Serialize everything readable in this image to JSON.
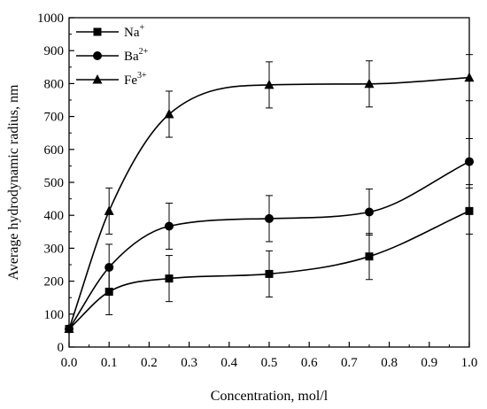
{
  "chart_data": {
    "type": "line",
    "xlabel": "Concentration, mol/l",
    "ylabel": "Average hydrodynamic radius, nm",
    "xlim": [
      0,
      1.0
    ],
    "ylim": [
      0,
      1000
    ],
    "xticks": [
      "0.0",
      "0.1",
      "0.2",
      "0.3",
      "0.4",
      "0.5",
      "0.6",
      "0.7",
      "0.8",
      "0.9",
      "1.0"
    ],
    "yticks": [
      "0",
      "100",
      "200",
      "300",
      "400",
      "500",
      "600",
      "700",
      "800",
      "900",
      "1000"
    ],
    "grid": false,
    "legend_position": "top-left",
    "series": [
      {
        "name": "Na",
        "superscript": "+",
        "marker": "square",
        "x": [
          0,
          0.1,
          0.25,
          0.5,
          0.75,
          1.0
        ],
        "y": [
          55,
          168,
          208,
          222,
          275,
          413
        ],
        "error": [
          0,
          70,
          70,
          70,
          70,
          70
        ]
      },
      {
        "name": "Ba",
        "superscript": "2+",
        "marker": "circle",
        "x": [
          0,
          0.1,
          0.25,
          0.5,
          0.75,
          1.0
        ],
        "y": [
          55,
          242,
          367,
          390,
          410,
          563
        ],
        "error": [
          0,
          70,
          70,
          70,
          70,
          70
        ]
      },
      {
        "name": "Fe",
        "superscript": "3+",
        "marker": "triangle",
        "x": [
          0,
          0.1,
          0.25,
          0.5,
          0.75,
          1.0
        ],
        "y": [
          55,
          413,
          707,
          796,
          799,
          818
        ],
        "error": [
          0,
          70,
          70,
          70,
          70,
          70
        ]
      }
    ],
    "colors": {
      "line": "#000000",
      "background": "#ffffff"
    }
  }
}
